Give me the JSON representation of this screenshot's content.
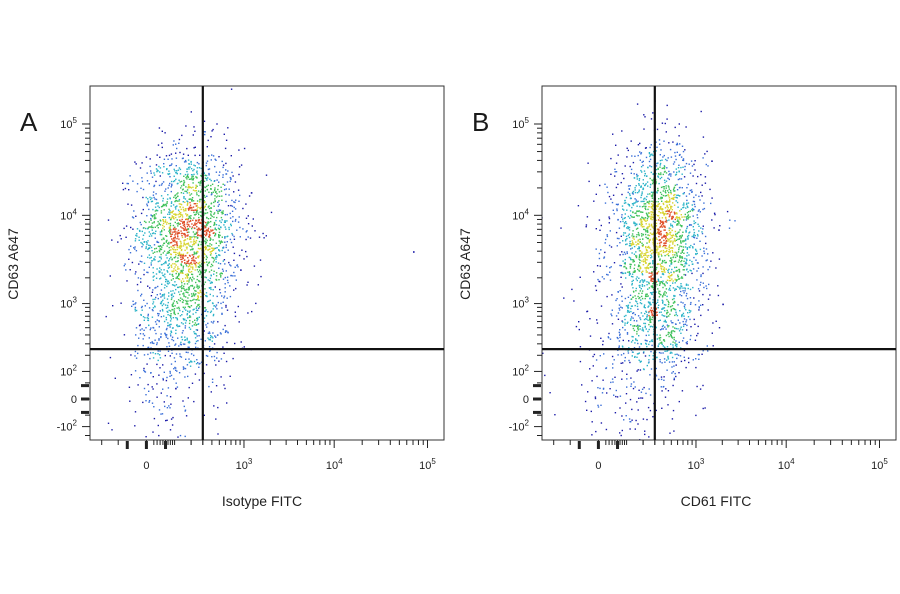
{
  "chart_data": [
    {
      "type": "scatter",
      "panel_label": "A",
      "xlabel": "Isotype FITC",
      "ylabel": "CD63 A647",
      "x_scale": "biexponential",
      "y_scale": "biexponential",
      "x_ticks": [
        {
          "value": 0,
          "base": "0",
          "exp": ""
        },
        {
          "value": 1000,
          "base": "10",
          "exp": "3"
        },
        {
          "value": 10000,
          "base": "10",
          "exp": "4"
        },
        {
          "value": 100000,
          "base": "10",
          "exp": "5"
        }
      ],
      "y_ticks": [
        {
          "value": -100,
          "base": "-10",
          "exp": "2"
        },
        {
          "value": 0,
          "base": "0",
          "exp": ""
        },
        {
          "value": 100,
          "base": "10",
          "exp": "2"
        },
        {
          "value": 1000,
          "base": "10",
          "exp": "3"
        },
        {
          "value": 10000,
          "base": "10",
          "exp": "4"
        },
        {
          "value": 100000,
          "base": "10",
          "exp": "5"
        }
      ],
      "quadrant_gate": {
        "x": 300,
        "y": 250
      },
      "populations": [
        {
          "x_center": 180,
          "y_center": 7000,
          "x_spread": 0.55,
          "y_spread": 0.28,
          "count": 1800
        },
        {
          "x_center": 150,
          "y_center": 600,
          "x_spread": 0.55,
          "y_spread": 0.22,
          "count": 500
        },
        {
          "x_center": 60,
          "y_center": 60,
          "x_spread": 0.55,
          "y_spread": 0.45,
          "count": 160
        }
      ],
      "outliers": [
        {
          "x": 70000,
          "y": 4000
        },
        {
          "x": 900,
          "y": 2500
        },
        {
          "x": 1200,
          "y": 18000
        }
      ],
      "density_colors": [
        "#1a1aa8",
        "#3a6fd8",
        "#2bb3c8",
        "#3fc15a",
        "#d8d430",
        "#e0502a"
      ]
    },
    {
      "type": "scatter",
      "panel_label": "B",
      "xlabel": "CD61 FITC",
      "ylabel": "CD63 A647",
      "x_scale": "biexponential",
      "y_scale": "biexponential",
      "x_ticks": [
        {
          "value": 0,
          "base": "0",
          "exp": ""
        },
        {
          "value": 1000,
          "base": "10",
          "exp": "3"
        },
        {
          "value": 10000,
          "base": "10",
          "exp": "4"
        },
        {
          "value": 100000,
          "base": "10",
          "exp": "5"
        }
      ],
      "y_ticks": [
        {
          "value": -100,
          "base": "-10",
          "exp": "2"
        },
        {
          "value": 0,
          "base": "0",
          "exp": ""
        },
        {
          "value": 100,
          "base": "10",
          "exp": "2"
        },
        {
          "value": 1000,
          "base": "10",
          "exp": "3"
        },
        {
          "value": 10000,
          "base": "10",
          "exp": "4"
        },
        {
          "value": 100000,
          "base": "10",
          "exp": "5"
        }
      ],
      "quadrant_gate": {
        "x": 300,
        "y": 250
      },
      "populations": [
        {
          "x_center": 330,
          "y_center": 6000,
          "x_spread": 0.5,
          "y_spread": 0.3,
          "count": 1800
        },
        {
          "x_center": 330,
          "y_center": 500,
          "x_spread": 0.5,
          "y_spread": 0.2,
          "count": 450
        },
        {
          "x_center": 90,
          "y_center": 80,
          "x_spread": 0.55,
          "y_spread": 0.5,
          "count": 220
        }
      ],
      "outliers": [
        {
          "x": 1500,
          "y": 40000
        },
        {
          "x": 2000,
          "y": 1000
        },
        {
          "x": 1800,
          "y": 7000
        }
      ],
      "density_colors": [
        "#1a1aa8",
        "#3a6fd8",
        "#2bb3c8",
        "#3fc15a",
        "#d8d430",
        "#e0502a"
      ]
    }
  ]
}
